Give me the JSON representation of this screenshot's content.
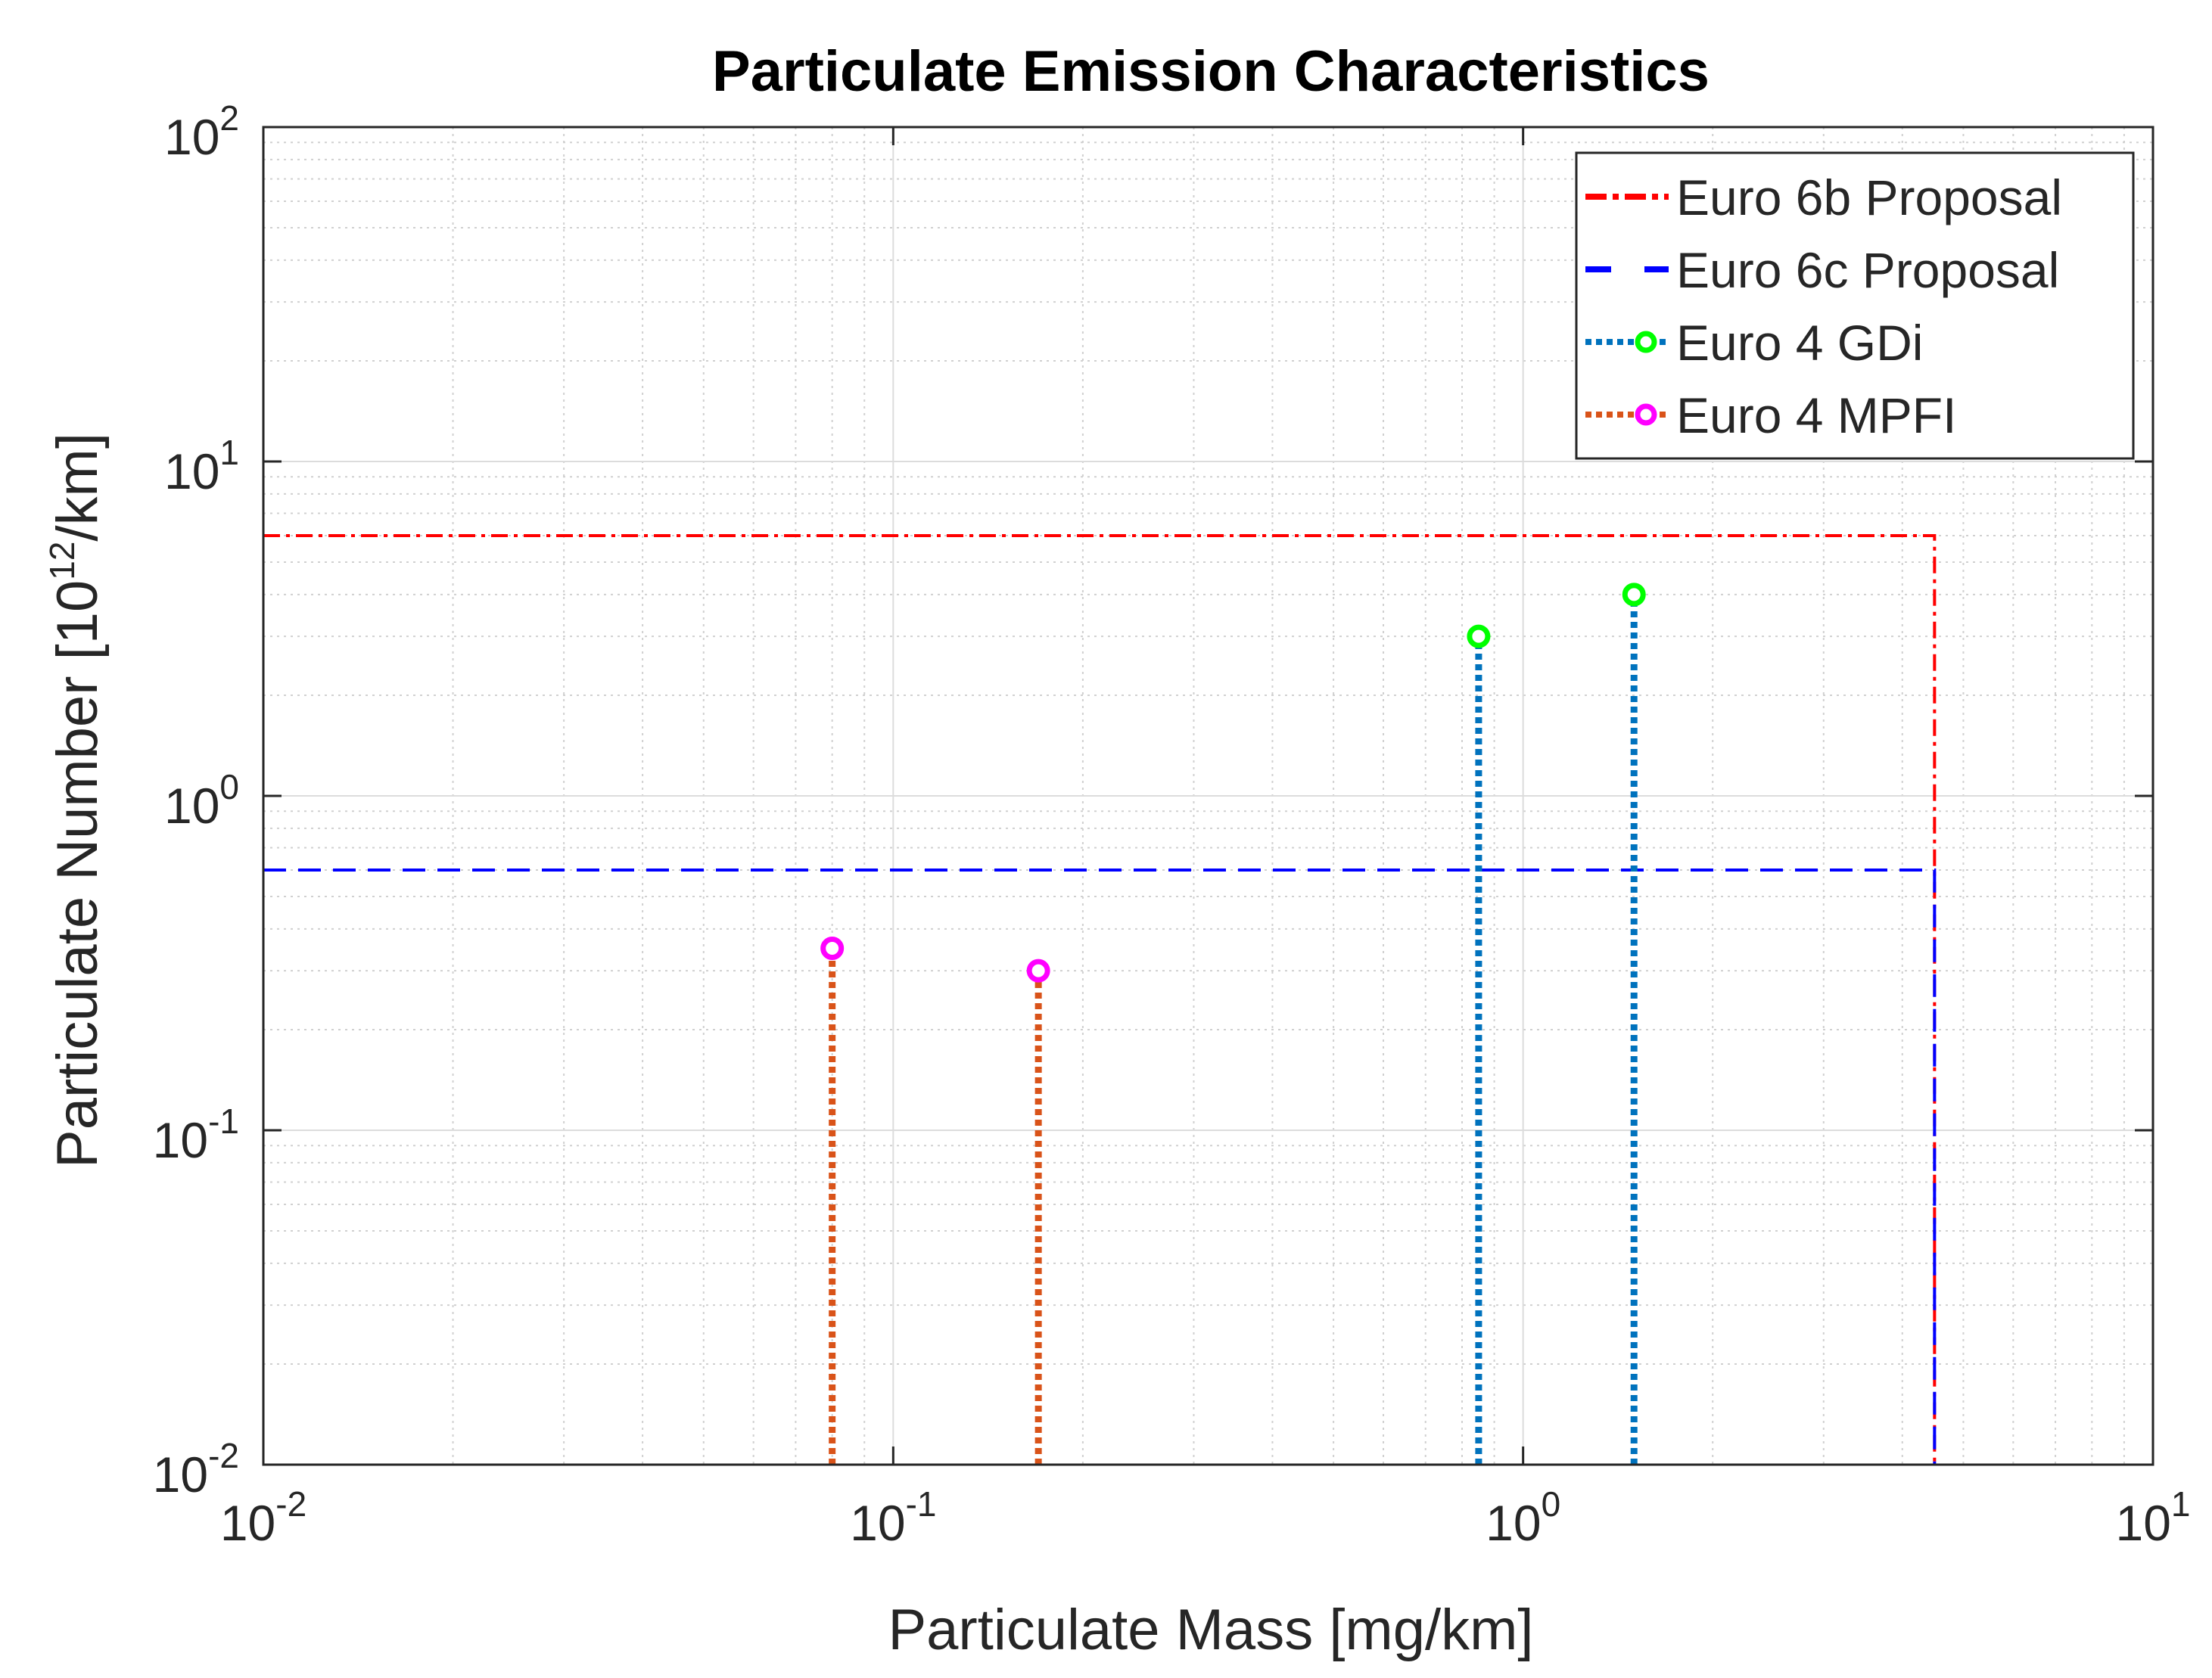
{
  "chart_data": {
    "type": "line",
    "title": "Particulate Emission Characteristics",
    "xlabel": "Particulate Mass [mg/km]",
    "ylabel": {
      "base": "Particulate Number [10",
      "sup": "12",
      "tail": "/km]"
    },
    "x_scale": "log",
    "y_scale": "log",
    "xlim": [
      0.01,
      10
    ],
    "ylim": [
      0.01,
      100
    ],
    "x_ticks": [
      {
        "base": "10",
        "exp": "-2",
        "value": 0.01
      },
      {
        "base": "10",
        "exp": "-1",
        "value": 0.1
      },
      {
        "base": "10",
        "exp": "0",
        "value": 1
      },
      {
        "base": "10",
        "exp": "1",
        "value": 10
      }
    ],
    "y_ticks": [
      {
        "base": "10",
        "exp": "-2",
        "value": 0.01
      },
      {
        "base": "10",
        "exp": "-1",
        "value": 0.1
      },
      {
        "base": "10",
        "exp": "0",
        "value": 1
      },
      {
        "base": "10",
        "exp": "1",
        "value": 10
      },
      {
        "base": "10",
        "exp": "2",
        "value": 100
      }
    ],
    "grid": true,
    "legend_position": "top-right",
    "series": [
      {
        "name": "Euro 6b Proposal",
        "kind": "limit",
        "color": "#ff0000",
        "style": "dash-dot",
        "points": [
          [
            0.01,
            6
          ],
          [
            4.5,
            6
          ],
          [
            4.5,
            0.01
          ]
        ]
      },
      {
        "name": "Euro 6c Proposal",
        "kind": "limit",
        "color": "#0000ff",
        "style": "dashed",
        "points": [
          [
            0.01,
            0.6
          ],
          [
            4.5,
            0.6
          ],
          [
            4.5,
            0.01
          ]
        ]
      },
      {
        "name": "Euro 4 GDi",
        "kind": "stem",
        "color": "#0072bd",
        "marker_color": "#00ff00",
        "style": "dotted",
        "points": [
          [
            0.85,
            3
          ],
          [
            1.5,
            4
          ]
        ]
      },
      {
        "name": "Euro 4 MPFI",
        "kind": "stem",
        "color": "#d95319",
        "marker_color": "#ff00ff",
        "style": "dotted",
        "points": [
          [
            0.08,
            0.35
          ],
          [
            0.17,
            0.3
          ]
        ]
      }
    ]
  }
}
